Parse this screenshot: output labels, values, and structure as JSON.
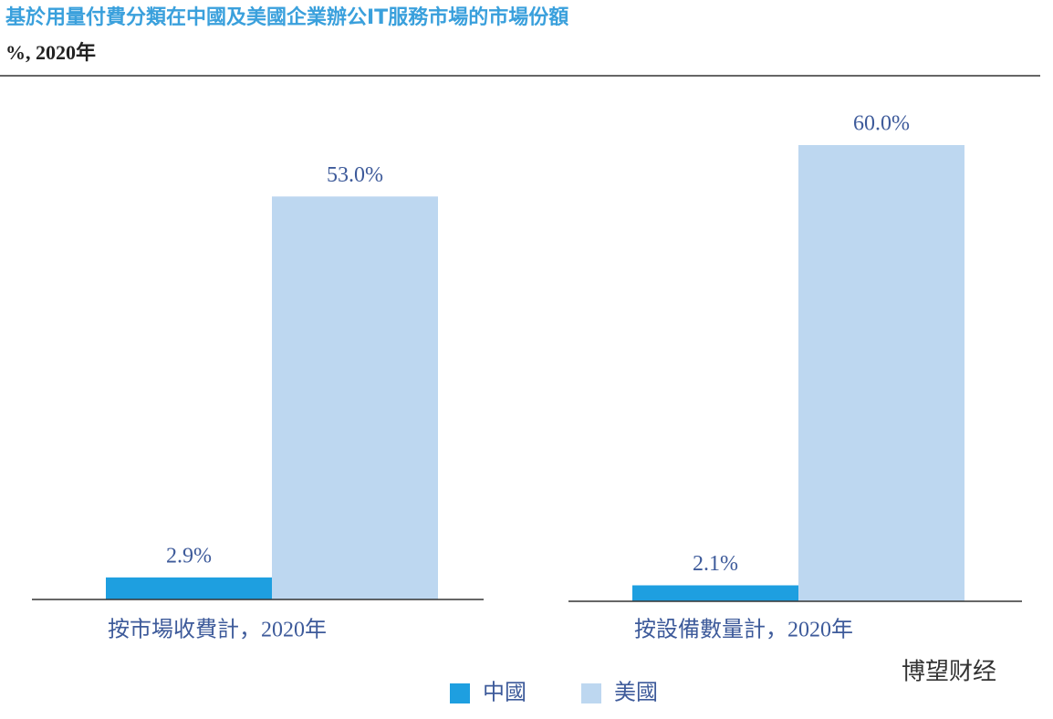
{
  "chart_data": {
    "type": "bar",
    "title": "基於用量付費分類在中國及美國企業辦公IT服務市場的市場份額",
    "subtitle": "%, 2020年",
    "categories": [
      "按市場收費計，2020年",
      "按設備數量計，2020年"
    ],
    "series": [
      {
        "name": "中國",
        "color": "#1e9fe0",
        "values": [
          2.9,
          2.1
        ],
        "value_labels": [
          "2.9%",
          "2.1%"
        ]
      },
      {
        "name": "美國",
        "color": "#bdd7f0",
        "values": [
          53.0,
          60.0
        ],
        "value_labels": [
          "53.0%",
          "60.0%"
        ]
      }
    ]
  },
  "watermark": "博望财经"
}
